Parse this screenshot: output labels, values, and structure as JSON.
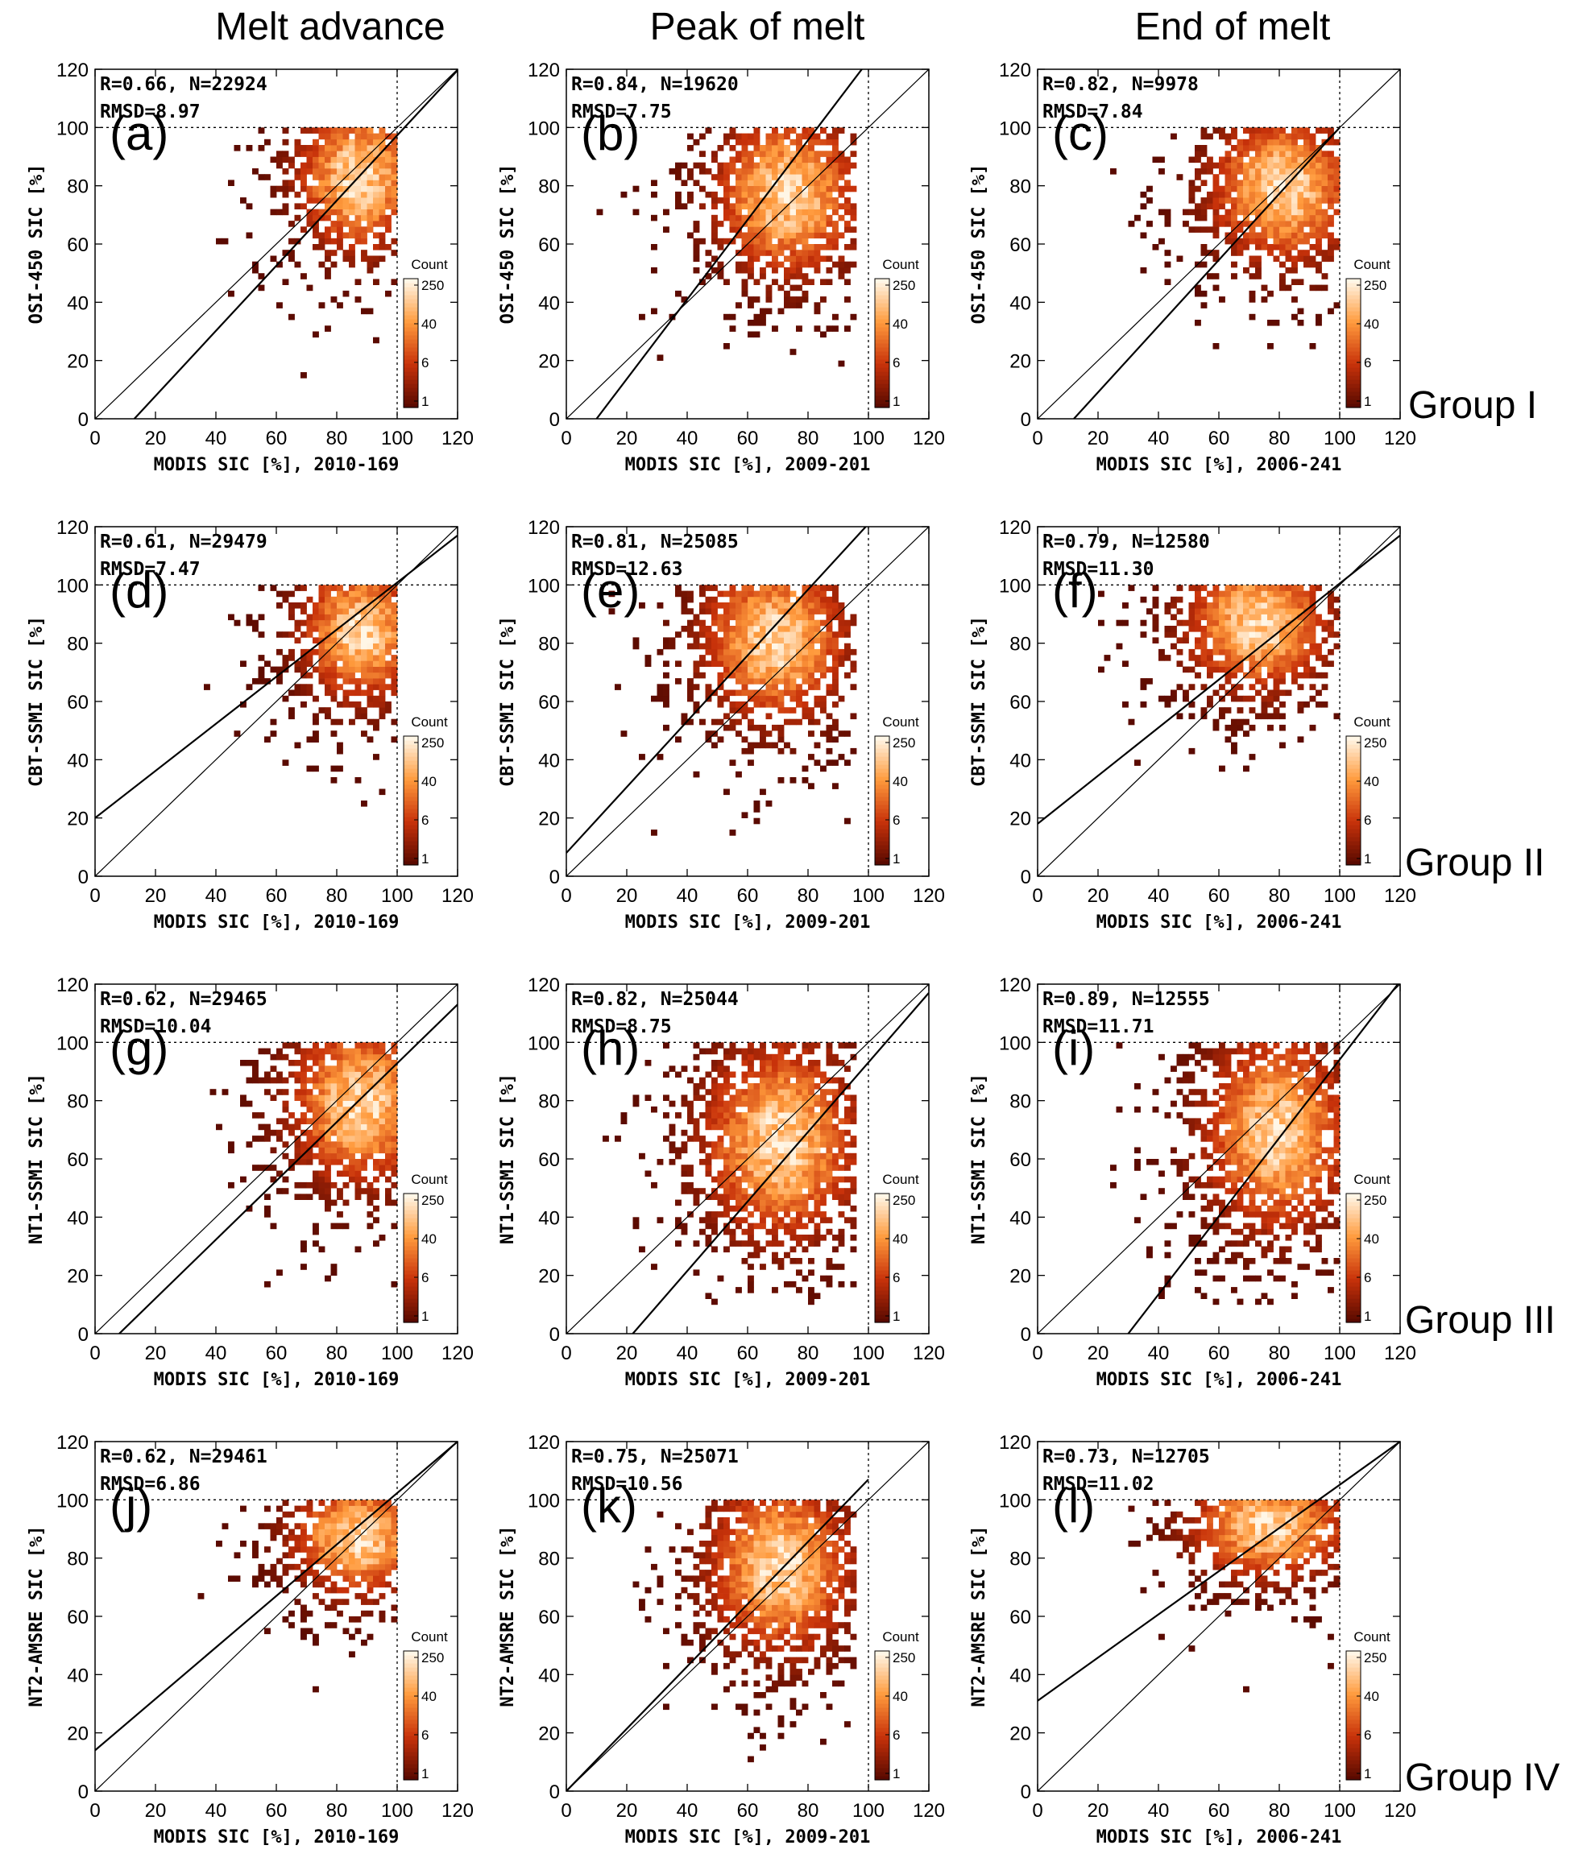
{
  "column_titles": [
    "Melt advance",
    "Peak of melt",
    "End of melt"
  ],
  "group_labels": [
    "Group I",
    "Group II",
    "Group III",
    "Group IV"
  ],
  "axis": {
    "x_ticks": [
      "0",
      "20",
      "40",
      "60",
      "80",
      "100",
      "120"
    ],
    "y_ticks": [
      "0",
      "20",
      "40",
      "60",
      "80",
      "100",
      "120"
    ],
    "xlim": [
      0,
      120
    ],
    "ylim": [
      0,
      120
    ],
    "reference_line": 100
  },
  "colorbar": {
    "title": "Count",
    "ticks": [
      "250",
      "40",
      "6",
      "1"
    ]
  },
  "colors": {
    "low": "#5a0a00",
    "mid": "#c8320a",
    "high": "#ff9a3c",
    "peak": "#fff6e6"
  },
  "chart_data": [
    {
      "type": "heatmap",
      "panel_label": "(a)",
      "ylabel": "OSI-450 SIC [%]",
      "xlabel": "MODIS SIC [%], 2010-169",
      "stats_line1": "R=0.66, N=22924",
      "stats_line2": "RMSD=8.97",
      "fit_line": [
        [
          13,
          0
        ],
        [
          123,
          123
        ]
      ],
      "density_center": [
        86,
        82
      ],
      "density_spread": [
        10,
        13
      ],
      "clip_x_max": 100
    },
    {
      "type": "heatmap",
      "panel_label": "(b)",
      "ylabel": "OSI-450 SIC [%]",
      "xlabel": "MODIS SIC [%], 2009-201",
      "stats_line1": "R=0.84, N=19620",
      "stats_line2": "RMSD=7.75",
      "fit_line": [
        [
          10,
          0
        ],
        [
          100,
          123
        ]
      ],
      "density_center": [
        72,
        76
      ],
      "density_spread": [
        12,
        14
      ],
      "clip_x_max": 96
    },
    {
      "type": "heatmap",
      "panel_label": "(c)",
      "ylabel": "OSI-450 SIC [%]",
      "xlabel": "MODIS SIC [%], 2006-241",
      "stats_line1": "R=0.82, N=9978",
      "stats_line2": "RMSD=7.84",
      "fit_line": [
        [
          12,
          0
        ],
        [
          100,
          100
        ]
      ],
      "density_center": [
        80,
        78
      ],
      "density_spread": [
        12,
        13
      ],
      "clip_x_max": 100
    },
    {
      "type": "heatmap",
      "panel_label": "(d)",
      "ylabel": "CBT-SSMI SIC [%]",
      "xlabel": "MODIS SIC [%], 2010-169",
      "stats_line1": "R=0.61, N=29479",
      "stats_line2": "RMSD=7.47",
      "fit_line": [
        [
          0,
          20
        ],
        [
          120,
          117
        ]
      ],
      "density_center": [
        87,
        83
      ],
      "density_spread": [
        10,
        12
      ],
      "clip_x_max": 100
    },
    {
      "type": "heatmap",
      "panel_label": "(e)",
      "ylabel": "CBT-SSMI SIC [%]",
      "xlabel": "MODIS SIC [%], 2009-201",
      "stats_line1": "R=0.81, N=25085",
      "stats_line2": "RMSD=12.63",
      "fit_line": [
        [
          0,
          8
        ],
        [
          100,
          121
        ]
      ],
      "density_center": [
        68,
        80
      ],
      "density_spread": [
        12,
        14
      ],
      "clip_x_max": 96
    },
    {
      "type": "heatmap",
      "panel_label": "(f)",
      "ylabel": "CBT-SSMI SIC [%]",
      "xlabel": "MODIS SIC [%], 2006-241",
      "stats_line1": "R=0.79, N=12580",
      "stats_line2": "RMSD=11.30",
      "fit_line": [
        [
          0,
          18
        ],
        [
          120,
          117
        ]
      ],
      "density_center": [
        72,
        86
      ],
      "density_spread": [
        12,
        12
      ],
      "clip_x_max": 100
    },
    {
      "type": "heatmap",
      "panel_label": "(g)",
      "ylabel": "NT1-SSMI SIC [%]",
      "xlabel": "MODIS SIC [%], 2010-169",
      "stats_line1": "R=0.62, N=29465",
      "stats_line2": "RMSD=10.04",
      "fit_line": [
        [
          8,
          0
        ],
        [
          120,
          113
        ]
      ],
      "density_center": [
        87,
        78
      ],
      "density_spread": [
        12,
        14
      ],
      "clip_x_max": 100
    },
    {
      "type": "heatmap",
      "panel_label": "(h)",
      "ylabel": "NT1-SSMI SIC [%]",
      "xlabel": "MODIS SIC [%], 2009-201",
      "stats_line1": "R=0.82, N=25044",
      "stats_line2": "RMSD=8.75",
      "fit_line": [
        [
          22,
          0
        ],
        [
          120,
          117
        ]
      ],
      "density_center": [
        70,
        65
      ],
      "density_spread": [
        13,
        17
      ],
      "clip_x_max": 96
    },
    {
      "type": "heatmap",
      "panel_label": "(i)",
      "ylabel": "NT1-SSMI SIC [%]",
      "xlabel": "MODIS SIC [%], 2006-241",
      "stats_line1": "R=0.89, N=12555",
      "stats_line2": "RMSD=11.71",
      "fit_line": [
        [
          30,
          0
        ],
        [
          120,
          121
        ]
      ],
      "density_center": [
        78,
        68
      ],
      "density_spread": [
        12,
        17
      ],
      "clip_x_max": 100
    },
    {
      "type": "heatmap",
      "panel_label": "(j)",
      "ylabel": "NT2-AMSRE SIC [%]",
      "xlabel": "MODIS SIC [%], 2010-169",
      "stats_line1": "R=0.62, N=29461",
      "stats_line2": "RMSD=6.86",
      "fit_line": [
        [
          0,
          14
        ],
        [
          120,
          120
        ]
      ],
      "density_center": [
        86,
        86
      ],
      "density_spread": [
        11,
        10
      ],
      "clip_x_max": 100
    },
    {
      "type": "heatmap",
      "panel_label": "(k)",
      "ylabel": "NT2-AMSRE SIC [%]",
      "xlabel": "MODIS SIC [%], 2009-201",
      "stats_line1": "R=0.75, N=25071",
      "stats_line2": "RMSD=10.56",
      "fit_line": [
        [
          0,
          0
        ],
        [
          100,
          107
        ]
      ],
      "density_center": [
        70,
        76
      ],
      "density_spread": [
        12,
        15
      ],
      "clip_x_max": 96
    },
    {
      "type": "heatmap",
      "panel_label": "(l)",
      "ylabel": "NT2-AMSRE SIC [%]",
      "xlabel": "MODIS SIC [%], 2006-241",
      "stats_line1": "R=0.73, N=12705",
      "stats_line2": "RMSD=11.02",
      "fit_line": [
        [
          0,
          31
        ],
        [
          120,
          120
        ]
      ],
      "density_center": [
        76,
        90
      ],
      "density_spread": [
        13,
        9
      ],
      "clip_x_max": 100
    }
  ]
}
